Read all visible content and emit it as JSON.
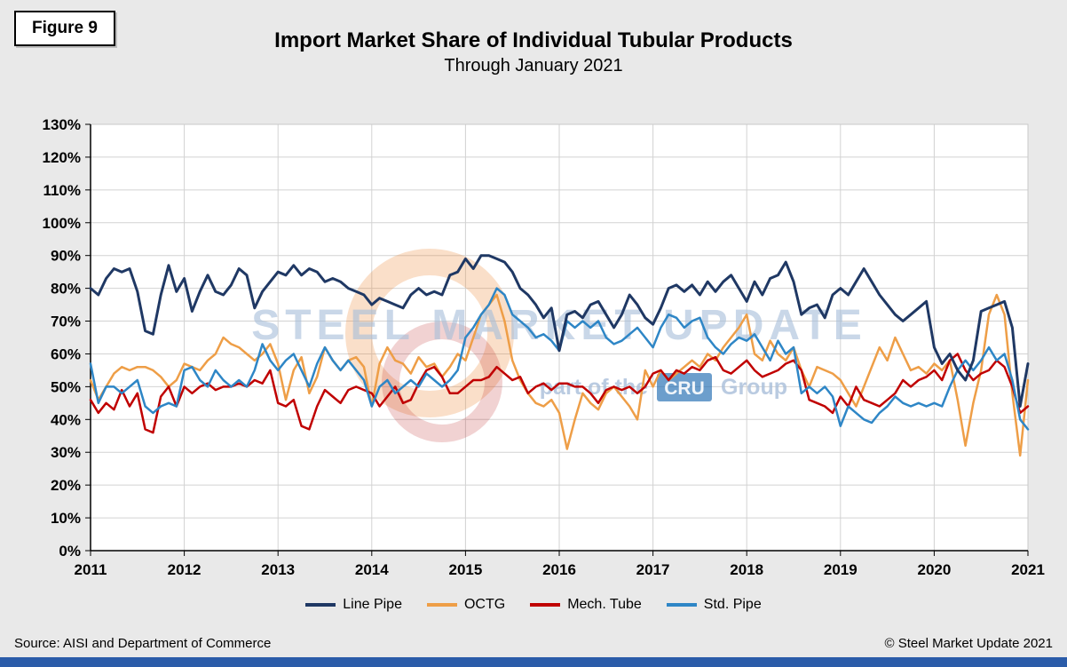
{
  "figure_label": "Figure 9",
  "title": "Import Market Share of Individual Tubular Products",
  "subtitle": "Through January 2021",
  "source": "Source: AISI and Department of Commerce",
  "copyright": "© Steel Market Update 2021",
  "watermark": {
    "line1": "STEEL MARKET UPDATE",
    "line2_prefix": "part of the",
    "cru": "CRU",
    "line2_suffix": "Group"
  },
  "colors": {
    "line_pipe": "#1F3864",
    "octg": "#EE9E47",
    "mech_tube": "#C00000",
    "std_pipe": "#2E86C6",
    "footer_bar": "#2B5CA9",
    "gridline": "#d2d2d2",
    "plot_background": "#ffffff",
    "page_background": "#e9e9e9"
  },
  "chart_data": {
    "type": "line",
    "x_start": "2011-01",
    "x_end": "2021-01",
    "x_frequency": "monthly",
    "n_points": 121,
    "units": "percent",
    "xticks": [
      "2011",
      "2012",
      "2013",
      "2014",
      "2015",
      "2016",
      "2017",
      "2018",
      "2019",
      "2020",
      "2021"
    ],
    "ylim": [
      0,
      130
    ],
    "ytick_step": 10,
    "ytick_labels": [
      "0%",
      "10%",
      "20%",
      "30%",
      "40%",
      "50%",
      "60%",
      "70%",
      "80%",
      "90%",
      "100%",
      "110%",
      "120%",
      "130%"
    ],
    "grid": true,
    "legend_position": "bottom",
    "series": [
      {
        "name": "Line Pipe",
        "color": "#1F3864",
        "values": [
          80,
          78,
          83,
          86,
          85,
          86,
          79,
          67,
          66,
          78,
          87,
          79,
          83,
          73,
          79,
          84,
          79,
          78,
          81,
          86,
          84,
          74,
          79,
          82,
          85,
          84,
          87,
          84,
          86,
          85,
          82,
          83,
          82,
          80,
          79,
          78,
          75,
          77,
          76,
          75,
          74,
          78,
          80,
          78,
          79,
          78,
          84,
          85,
          89,
          86,
          90,
          90,
          89,
          88,
          85,
          80,
          78,
          75,
          71,
          74,
          61,
          72,
          73,
          71,
          75,
          76,
          72,
          68,
          72,
          78,
          75,
          71,
          69,
          74,
          80,
          81,
          79,
          81,
          78,
          82,
          79,
          82,
          84,
          80,
          76,
          82,
          78,
          83,
          84,
          88,
          82,
          72,
          74,
          75,
          71,
          78,
          80,
          78,
          82,
          86,
          82,
          78,
          75,
          72,
          70,
          72,
          74,
          76,
          62,
          57,
          60,
          55,
          52,
          58,
          73,
          74,
          75,
          76,
          68,
          44,
          57
        ]
      },
      {
        "name": "OCTG",
        "color": "#EE9E47",
        "values": [
          52,
          46,
          50,
          54,
          56,
          55,
          56,
          56,
          55,
          53,
          50,
          52,
          57,
          56,
          55,
          58,
          60,
          65,
          63,
          62,
          60,
          58,
          60,
          63,
          57,
          46,
          55,
          59,
          48,
          53,
          62,
          58,
          55,
          58,
          59,
          56,
          44,
          57,
          62,
          58,
          57,
          54,
          59,
          56,
          57,
          53,
          56,
          60,
          58,
          65,
          72,
          75,
          78,
          70,
          58,
          52,
          48,
          45,
          44,
          46,
          42,
          31,
          40,
          48,
          45,
          43,
          48,
          50,
          47,
          44,
          40,
          55,
          50,
          55,
          52,
          54,
          56,
          58,
          56,
          60,
          58,
          62,
          65,
          68,
          72,
          60,
          58,
          64,
          60,
          58,
          62,
          55,
          50,
          56,
          55,
          54,
          52,
          48,
          44,
          50,
          56,
          62,
          58,
          65,
          60,
          55,
          56,
          54,
          57,
          55,
          58,
          46,
          32,
          45,
          55,
          72,
          78,
          72,
          48,
          29,
          52
        ]
      },
      {
        "name": "Mech. Tube",
        "color": "#C00000",
        "values": [
          46,
          42,
          45,
          43,
          49,
          44,
          48,
          37,
          36,
          47,
          50,
          44,
          50,
          48,
          50,
          51,
          49,
          50,
          50,
          51,
          50,
          52,
          51,
          55,
          45,
          44,
          46,
          38,
          37,
          44,
          49,
          47,
          45,
          49,
          50,
          49,
          48,
          44,
          47,
          50,
          45,
          46,
          51,
          55,
          56,
          53,
          48,
          48,
          50,
          52,
          52,
          53,
          56,
          54,
          52,
          53,
          48,
          50,
          51,
          49,
          51,
          51,
          50,
          50,
          48,
          45,
          49,
          50,
          49,
          50,
          48,
          50,
          54,
          55,
          52,
          55,
          54,
          56,
          55,
          58,
          59,
          55,
          54,
          56,
          58,
          55,
          53,
          54,
          55,
          57,
          58,
          55,
          46,
          45,
          44,
          42,
          47,
          44,
          50,
          46,
          45,
          44,
          46,
          48,
          52,
          50,
          52,
          53,
          55,
          52,
          58,
          60,
          55,
          52,
          54,
          55,
          58,
          56,
          50,
          42,
          44
        ]
      },
      {
        "name": "Std. Pipe",
        "color": "#2E86C6",
        "values": [
          57,
          45,
          50,
          50,
          48,
          50,
          52,
          44,
          42,
          44,
          45,
          44,
          55,
          56,
          52,
          50,
          55,
          52,
          50,
          52,
          50,
          55,
          63,
          58,
          55,
          58,
          60,
          55,
          50,
          57,
          62,
          58,
          55,
          58,
          55,
          52,
          44,
          50,
          52,
          48,
          50,
          52,
          50,
          54,
          52,
          50,
          52,
          55,
          65,
          68,
          72,
          75,
          80,
          78,
          72,
          70,
          68,
          65,
          66,
          64,
          61,
          70,
          68,
          70,
          68,
          70,
          65,
          63,
          64,
          66,
          68,
          65,
          62,
          68,
          72,
          71,
          68,
          70,
          71,
          65,
          62,
          60,
          63,
          65,
          64,
          66,
          62,
          58,
          64,
          60,
          62,
          48,
          50,
          48,
          50,
          47,
          38,
          44,
          42,
          40,
          39,
          42,
          44,
          47,
          45,
          44,
          45,
          44,
          45,
          44,
          50,
          55,
          58,
          55,
          58,
          62,
          58,
          60,
          52,
          40,
          37
        ]
      }
    ]
  }
}
